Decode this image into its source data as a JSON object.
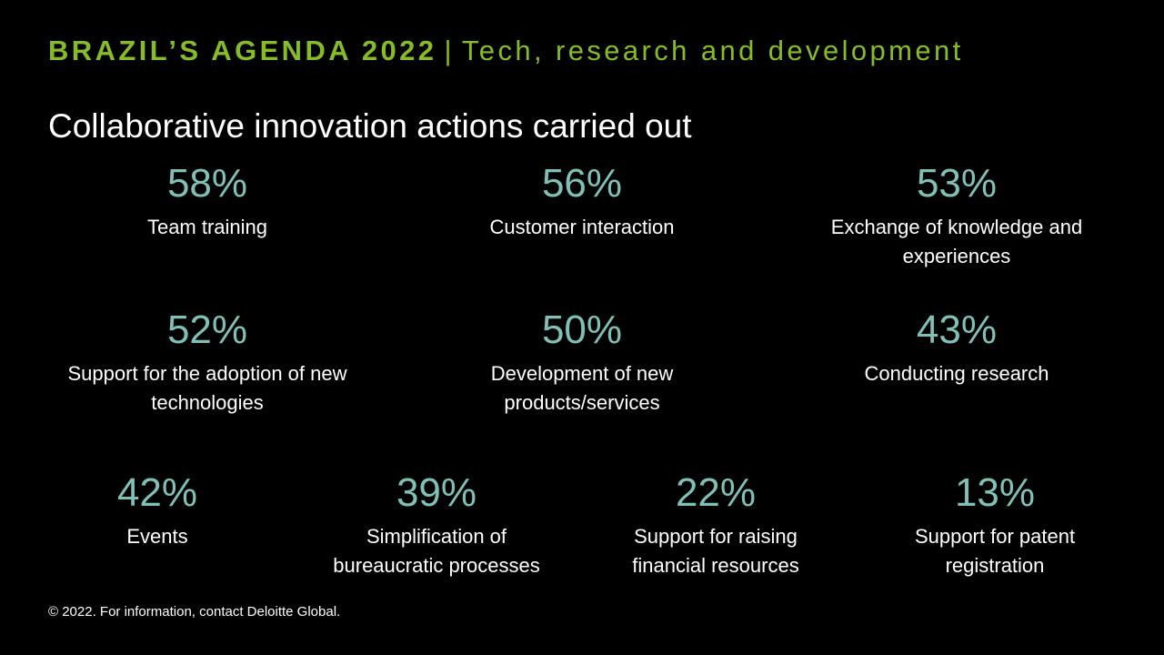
{
  "header": {
    "brand": "BRAZIL’S AGENDA 2022",
    "separator": "|",
    "topic": "Tech, research and development"
  },
  "subtitle": "Collaborative innovation actions carried out",
  "stats": [
    {
      "value": "58%",
      "label": "Team training"
    },
    {
      "value": "56%",
      "label": "Customer interaction"
    },
    {
      "value": "53%",
      "label": "Exchange of knowledge and experiences"
    },
    {
      "value": "52%",
      "label": "Support for the adoption of new technologies"
    },
    {
      "value": "50%",
      "label": "Development of new products/services"
    },
    {
      "value": "43%",
      "label": "Conducting research"
    },
    {
      "value": "42%",
      "label": "Events"
    },
    {
      "value": "39%",
      "label": "Simplification of bureaucratic processes"
    },
    {
      "value": "22%",
      "label": "Support for raising financial resources"
    },
    {
      "value": "13%",
      "label": "Support for patent registration"
    }
  ],
  "footer": "© 2022. For information, contact Deloitte Global.",
  "colors": {
    "accent_green": "#86bc25",
    "value_teal": "#7fc1b6",
    "background": "#000000"
  }
}
